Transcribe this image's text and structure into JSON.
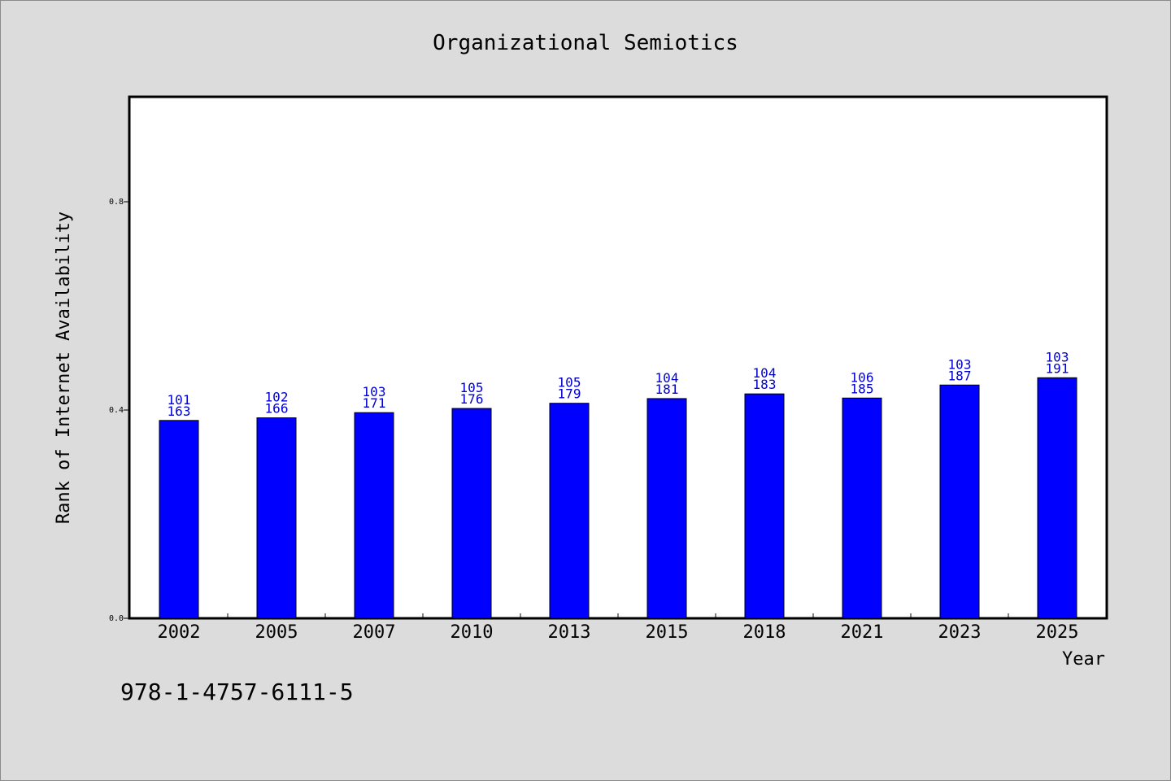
{
  "chart_data": {
    "type": "bar",
    "title": "Organizational Semiotics",
    "xlabel": "Year",
    "ylabel": "Rank of Internet Availability",
    "categories": [
      "2002",
      "2005",
      "2007",
      "2010",
      "2013",
      "2015",
      "2018",
      "2021",
      "2023",
      "2025"
    ],
    "values": [
      0.38,
      0.385,
      0.395,
      0.403,
      0.413,
      0.422,
      0.431,
      0.423,
      0.448,
      0.462
    ],
    "label_top": [
      "101",
      "102",
      "103",
      "105",
      "105",
      "104",
      "104",
      "106",
      "103",
      "103"
    ],
    "label_bottom": [
      "163",
      "166",
      "171",
      "176",
      "179",
      "181",
      "183",
      "185",
      "187",
      "191"
    ],
    "ylim": [
      0,
      1.0
    ],
    "yticks": [
      0.0,
      0.4,
      0.8
    ],
    "ytick_labels": [
      "0.0",
      "0.4",
      "0.8"
    ],
    "bar_color": "#0000ff",
    "label_color": "#0000cc",
    "grid": false
  },
  "footer": {
    "code": "978-1-4757-6111-5"
  }
}
